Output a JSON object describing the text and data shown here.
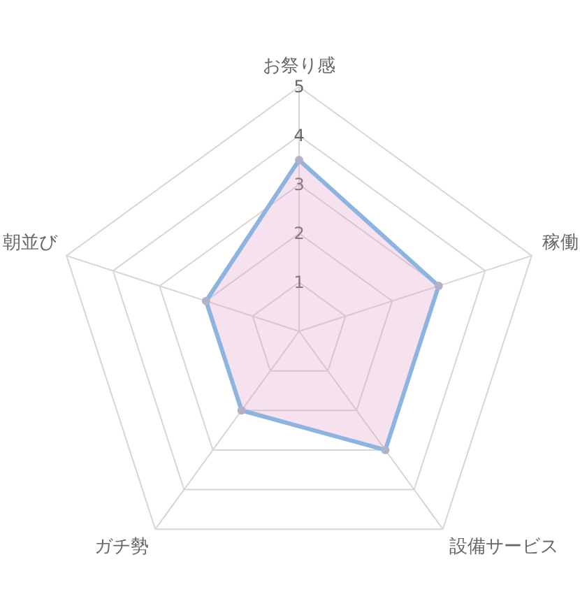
{
  "chart_data": {
    "type": "radar",
    "categories": [
      "お祭り感",
      "稼働",
      "設備サービス",
      "ガチ勢",
      "朝並び"
    ],
    "series": [
      {
        "color": "#8cb4e0",
        "values": [
          3.5,
          3,
          3,
          2,
          2
        ]
      }
    ],
    "ylim": [
      0,
      5
    ],
    "yticks": [
      1,
      2,
      3,
      4,
      5
    ],
    "grid": true,
    "marker": "circle"
  }
}
